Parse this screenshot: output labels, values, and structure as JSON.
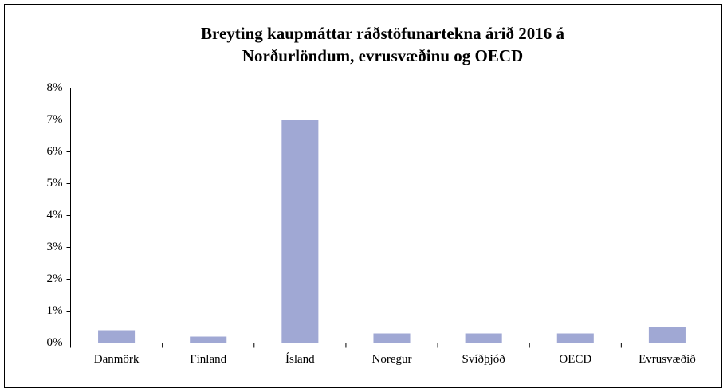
{
  "chart_data": {
    "type": "bar",
    "title": [
      "Breyting kaupmáttar ráðstöfunartekna árið 2016 á",
      "Norðurlöndum, evrusvæðinu og OECD"
    ],
    "categories": [
      "Danmörk",
      "Finland",
      "Ísland",
      "Noregur",
      "Svíðþjóð",
      "OECD",
      "Evrusvæðið"
    ],
    "values": [
      0.4,
      0.2,
      7.0,
      0.3,
      0.3,
      0.3,
      0.5
    ],
    "color": "#a0a8d4",
    "ylim": [
      0,
      8
    ],
    "yticks": [
      {
        "value": 0,
        "label": "0%"
      },
      {
        "value": 1,
        "label": "1%"
      },
      {
        "value": 2,
        "label": "2%"
      },
      {
        "value": 3,
        "label": "3%"
      },
      {
        "value": 4,
        "label": "4%"
      },
      {
        "value": 5,
        "label": "5%"
      },
      {
        "value": 6,
        "label": "6%"
      },
      {
        "value": 7,
        "label": "7%"
      },
      {
        "value": 8,
        "label": "8%"
      }
    ],
    "grid": false
  }
}
